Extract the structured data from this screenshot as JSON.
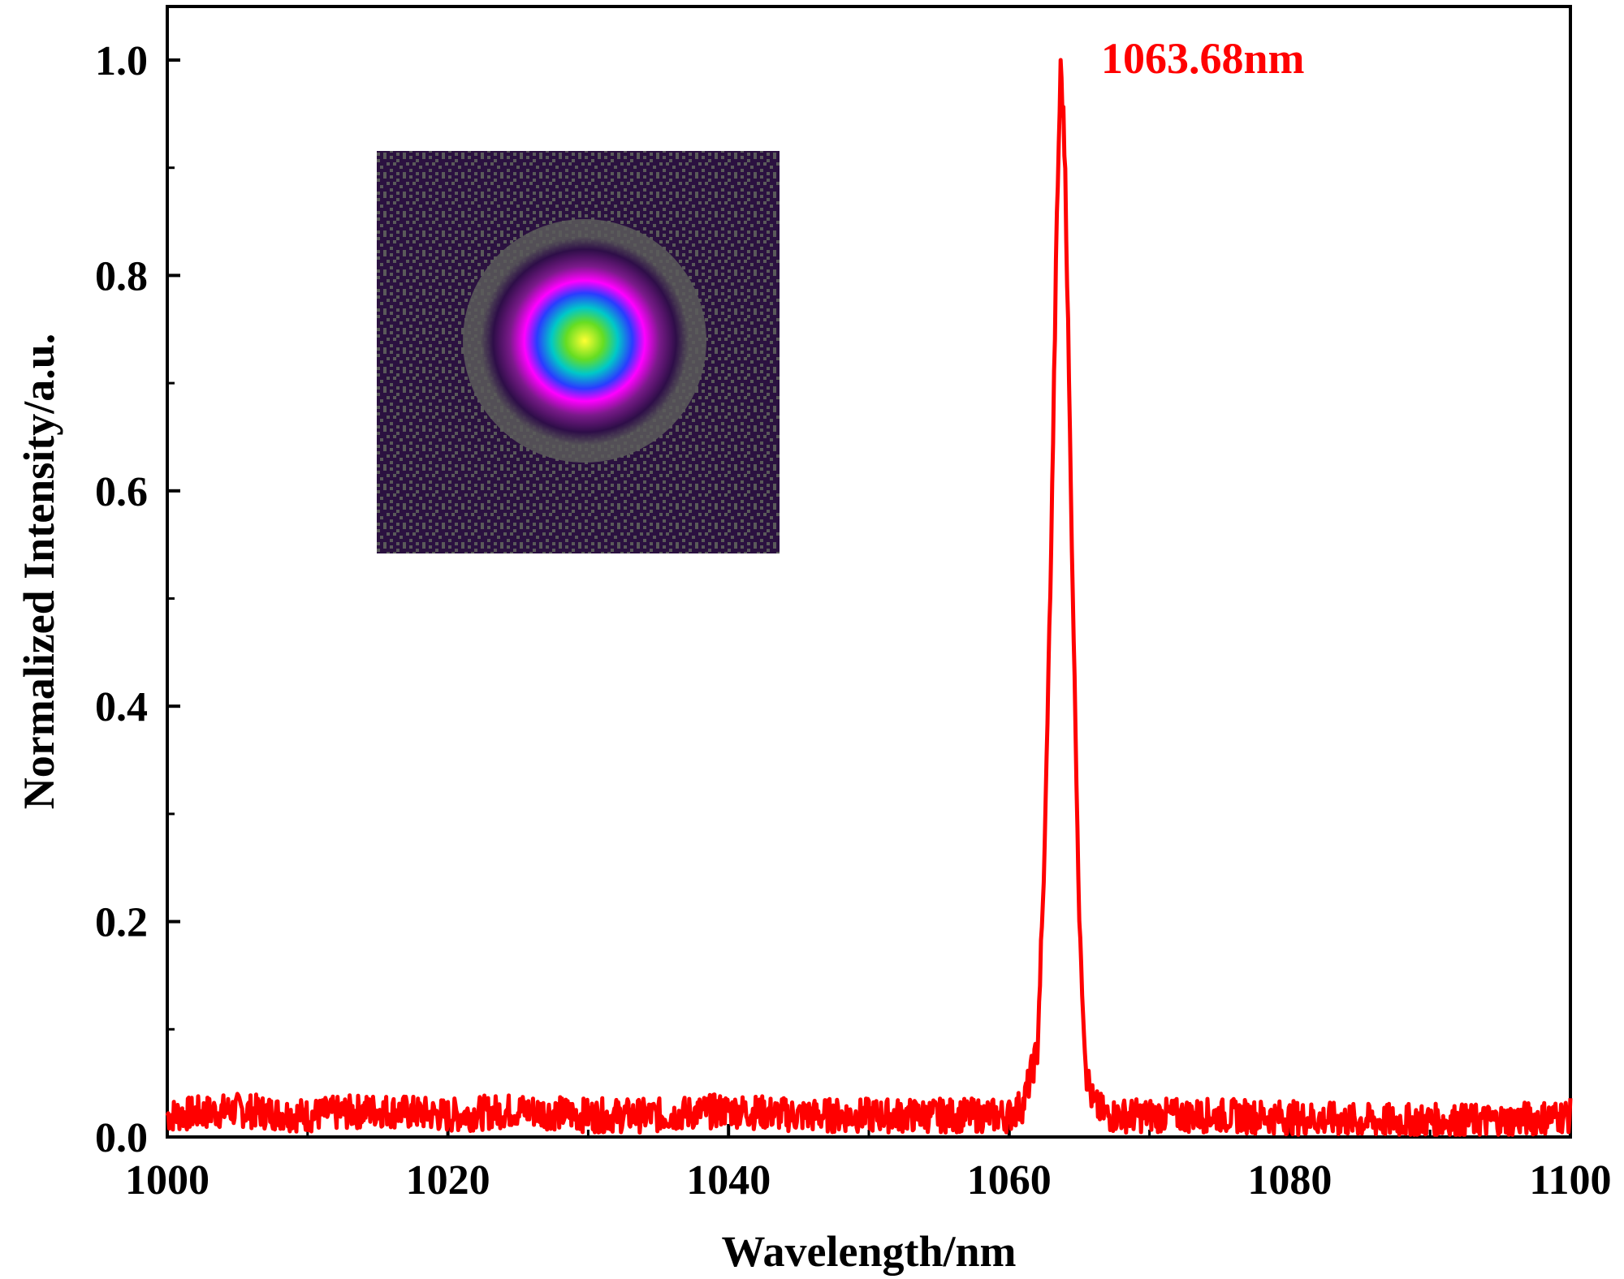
{
  "chart_data": {
    "type": "line",
    "xlabel": "Wavelength/nm",
    "ylabel": "Normalized Intensity/a.u.",
    "xlim": [
      1000,
      1100
    ],
    "ylim": [
      0.0,
      1.02
    ],
    "xticks": [
      1000,
      1020,
      1040,
      1060,
      1080,
      1100
    ],
    "xtick_labels": [
      "1000",
      "1020",
      "1040",
      "1060",
      "1080",
      "1100"
    ],
    "yticks": [
      0.0,
      0.2,
      0.4,
      0.6,
      0.8,
      1.0
    ],
    "ytick_labels": [
      "0.0",
      "0.2",
      "0.4",
      "0.6",
      "0.8",
      "1.0"
    ],
    "grid": false,
    "legend": "none",
    "series": [
      {
        "color": "#ff0000",
        "x": [
          1000,
          1005,
          1010,
          1015,
          1020,
          1025,
          1030,
          1035,
          1040,
          1045,
          1050,
          1055,
          1058,
          1060,
          1061,
          1062,
          1062.5,
          1063,
          1063.4,
          1063.68,
          1064,
          1064.4,
          1065,
          1065.5,
          1066,
          1067,
          1070,
          1075,
          1080,
          1085,
          1090,
          1095,
          1100
        ],
        "y": [
          0.02,
          0.025,
          0.02,
          0.025,
          0.02,
          0.025,
          0.02,
          0.02,
          0.025,
          0.02,
          0.02,
          0.02,
          0.02,
          0.02,
          0.03,
          0.08,
          0.25,
          0.55,
          0.85,
          1.0,
          0.9,
          0.6,
          0.2,
          0.06,
          0.03,
          0.02,
          0.02,
          0.02,
          0.018,
          0.015,
          0.015,
          0.015,
          0.02
        ]
      }
    ],
    "annotations": [
      {
        "text": "1063.68nm",
        "x": 1063.68,
        "y": 1.0,
        "color": "#ff0000"
      }
    ]
  },
  "inset": {
    "type": "beam-profile-image"
  }
}
